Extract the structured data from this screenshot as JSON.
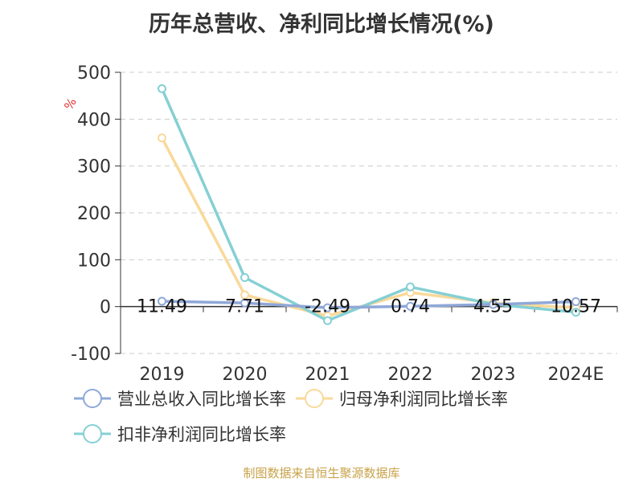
{
  "title": "历年总营收、净利同比增长情况(%)",
  "source_note": "制图数据来自恒生聚源数据库",
  "chart_data": {
    "type": "line",
    "title": "历年总营收、净利同比增长情况(%)",
    "ylabel": "%",
    "xlabel": "",
    "categories": [
      "2019",
      "2020",
      "2021",
      "2022",
      "2023",
      "2024E"
    ],
    "ylim": [
      -100,
      500
    ],
    "yticks": [
      -100,
      0,
      100,
      200,
      300,
      400,
      500
    ],
    "grid": true,
    "legend_position": "bottom",
    "series": [
      {
        "name": "营业总收入同比增长率",
        "color": "#8fa8d8",
        "values": [
          11.49,
          7.71,
          -2.49,
          0.74,
          4.55,
          10.57
        ],
        "labels": [
          "11.49",
          "7.71",
          "-2.49",
          "0.74",
          "4.55",
          "10.57"
        ]
      },
      {
        "name": "归母净利润同比增长率",
        "color": "#f9d99a",
        "values": [
          360,
          25,
          -20,
          30,
          8,
          -3
        ]
      },
      {
        "name": "扣非净利润同比增长率",
        "color": "#85d0d4",
        "values": [
          465,
          62,
          -30,
          42,
          5,
          -12
        ]
      }
    ]
  }
}
